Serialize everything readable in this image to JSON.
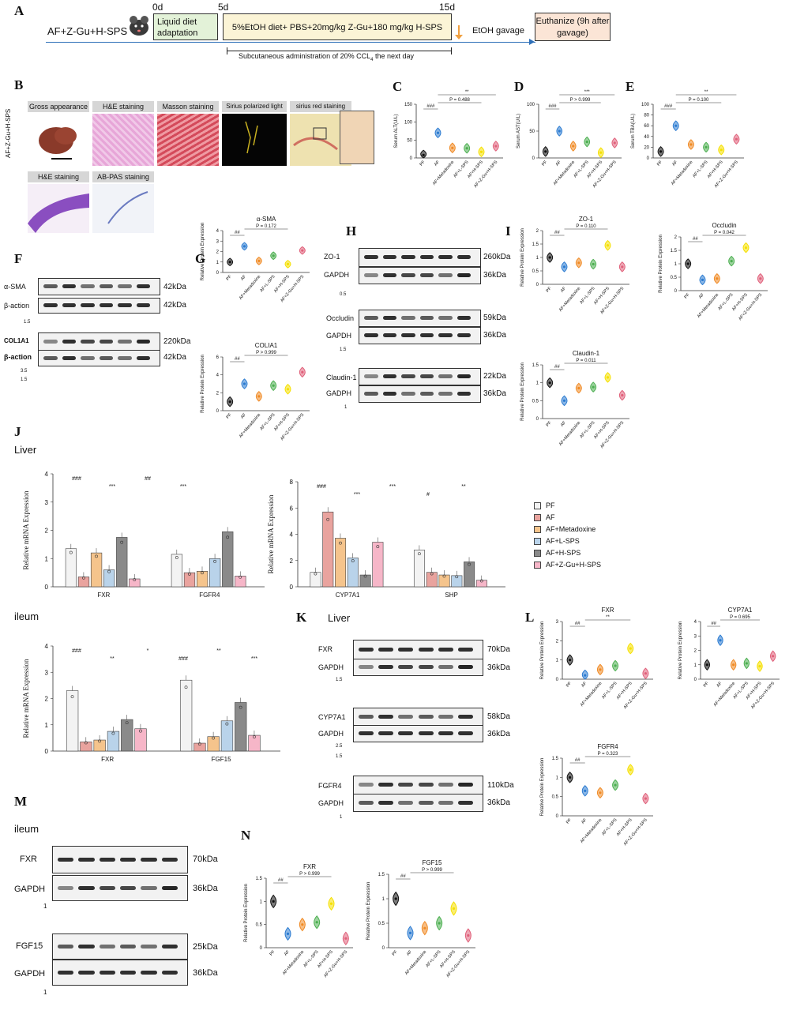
{
  "panels": {
    "A": "A",
    "B": "B",
    "C": "C",
    "D": "D",
    "E": "E",
    "F": "F",
    "G": "G",
    "H": "H",
    "I": "I",
    "J": "J",
    "K": "K",
    "L": "L",
    "M": "M",
    "N": "N"
  },
  "timeline": {
    "group": "AF+Z-Gu+H-SPS",
    "day0": "0d",
    "day5": "5d",
    "day15": "15d",
    "box1": "Liquid diet adaptation",
    "box2": "5%EtOH diet+ PBS+20mg/kg Z-Gu+180 mg/kg H-SPS",
    "subq": "Subcutaneous administration of 20% CCL",
    "subq_sub": "4",
    "subq_tail": " the next day",
    "gavage": "EtOH gavage",
    "euth": "Euthanize (9h after gavage)"
  },
  "histology": {
    "side_label": "AF+Z-Gu+H-SPS",
    "headers": [
      "Gross appearance",
      "H&E staining",
      "Masson staining",
      "Sirius polarized light",
      "sirius red staining",
      "H&E staining",
      "AB-PAS staining"
    ]
  },
  "groups6": [
    "PF",
    "AF",
    "AF+Metadoxine",
    "AF+L-SPS",
    "AF+H-SPS",
    "AF+Z-Gu+H-SPS"
  ],
  "legend": [
    "PF",
    "AF",
    "AF+Metadoxine",
    "AF+L-SPS",
    "AF+H-SPS",
    "AF+Z-Gu+H-SPS"
  ],
  "colors": {
    "PF": "#111111",
    "AF": "#2b7bd1",
    "AF+Metadoxine": "#f08a24",
    "AF+L-SPS": "#4caf50",
    "AF+H-SPS": "#f5e000",
    "AF+Z-Gu+H-SPS": "#e0607a"
  },
  "bar_colors": [
    "#f3f3f3",
    "#e9a39e",
    "#f5c48c",
    "#b9d3ea",
    "#8a8a8a",
    "#f6b6c8"
  ],
  "sections": {
    "liver": "Liver",
    "ileum": "ileum",
    "liver_k": "Liver",
    "ileum_m": "ileum"
  },
  "blots": {
    "F": {
      "rows": [
        "α-SMA",
        "β-action",
        "COL1A1",
        "β-action"
      ],
      "kda": [
        "42kDa",
        "42kDa",
        "220kDa",
        "42kDa"
      ],
      "scale1": "1.5",
      "scale2": "3.5",
      "scale3": "1.5"
    },
    "H": {
      "rows": [
        "ZO-1",
        "GAPDH",
        "Occludin",
        "GAPDH",
        "Claudin-1",
        "GADPH"
      ],
      "kda": [
        "260kDa",
        "36kDa",
        "59kDa",
        "36kDa",
        "22kDa",
        "36kDa"
      ],
      "scale1": "0.5",
      "scale2": "1.5",
      "scale3": "1"
    },
    "K": {
      "rows": [
        "FXR",
        "GAPDH",
        "CYP7A1",
        "GAPDH",
        "FGFR4",
        "GAPDH"
      ],
      "kda": [
        "70kDa",
        "36kDa",
        "58kDa",
        "36kDa",
        "110kDa",
        "36kDa"
      ],
      "scale1": "1.5",
      "scale2": "2.5",
      "scale2b": "1.5",
      "scale3": "1"
    },
    "M": {
      "rows": [
        "FXR",
        "GAPDH",
        "FGF15",
        "GAPDH"
      ],
      "kda": [
        "70kDa",
        "36kDa",
        "25kDa",
        "36kDa"
      ],
      "scale1": "1",
      "scale2": "1"
    }
  },
  "chart_data": [
    {
      "id": "C",
      "type": "violin",
      "ylabel": "Serum ALT(U/L)",
      "ylim": [
        0,
        150
      ],
      "yticks": [
        0,
        50,
        100,
        150
      ],
      "groups": [
        "PF",
        "AF",
        "AF+Metadoxine",
        "AF+L-SPS",
        "AF+H-SPS",
        "AF+Z-Gu+H-SPS"
      ],
      "values": [
        8,
        70,
        28,
        27,
        17,
        33
      ],
      "annotations": [
        "###",
        "P = 0.488",
        "**"
      ]
    },
    {
      "id": "D",
      "type": "violin",
      "ylabel": "Serum AST(U/L)",
      "ylim": [
        0,
        100
      ],
      "yticks": [
        0,
        50,
        100
      ],
      "groups": [
        "PF",
        "AF",
        "AF+Metadoxine",
        "AF+L-SPS",
        "AF+H-SPS",
        "AF+Z-Gu+H-SPS"
      ],
      "values": [
        12,
        50,
        22,
        30,
        10,
        28
      ],
      "annotations": [
        "###",
        "P > 0.999",
        "***"
      ]
    },
    {
      "id": "E",
      "type": "violin",
      "ylabel": "Serum TBA(U/L)",
      "ylim": [
        0,
        100
      ],
      "yticks": [
        0,
        20,
        40,
        60,
        80,
        100
      ],
      "groups": [
        "PF",
        "AF",
        "AF+Metadoxine",
        "AF+L-SPS",
        "AF+H-SPS",
        "AF+Z-Gu+H-SPS"
      ],
      "values": [
        12,
        60,
        25,
        20,
        15,
        35
      ],
      "annotations": [
        "###",
        "P = 0.100",
        "**"
      ]
    },
    {
      "id": "G1",
      "type": "violin",
      "title": "α-SMA",
      "ylabel": "Relative Protein Expression",
      "ylim": [
        0,
        4
      ],
      "yticks": [
        0,
        1,
        2,
        3,
        4
      ],
      "values": [
        1,
        2.5,
        1.1,
        1.6,
        0.8,
        2.1
      ],
      "annotations": [
        "##",
        "P = 0.172"
      ]
    },
    {
      "id": "G2",
      "type": "violin",
      "title": "COLIA1",
      "ylabel": "Relative Protein Expression",
      "ylim": [
        0,
        6
      ],
      "yticks": [
        0,
        2,
        4,
        6
      ],
      "values": [
        1,
        3,
        1.6,
        2.8,
        2.4,
        4.3
      ],
      "annotations": [
        "##",
        "P > 0.999"
      ]
    },
    {
      "id": "I1",
      "type": "violin",
      "title": "ZO-1",
      "ylabel": "Relative Protein Expression",
      "ylim": [
        0,
        2
      ],
      "yticks": [
        0,
        0.5,
        1,
        1.5,
        2
      ],
      "values": [
        1,
        0.65,
        0.8,
        0.75,
        1.45,
        0.65
      ],
      "annotations": [
        "##",
        "P = 0.110"
      ]
    },
    {
      "id": "I2",
      "type": "violin",
      "title": "Occludin",
      "ylabel": "Relative Protein Expression",
      "ylim": [
        0,
        2
      ],
      "yticks": [
        0,
        0.5,
        1,
        1.5,
        2
      ],
      "values": [
        1,
        0.4,
        0.45,
        1.1,
        1.6,
        0.45
      ],
      "annotations": [
        "##",
        "P = 0.042"
      ]
    },
    {
      "id": "I3",
      "type": "violin",
      "title": "Claudin-1",
      "ylabel": "Relative Protein Expression",
      "ylim": [
        0,
        1.5
      ],
      "yticks": [
        0,
        0.5,
        1,
        1.5
      ],
      "values": [
        1,
        0.5,
        0.85,
        0.88,
        1.15,
        0.65
      ],
      "annotations": [
        "##",
        "P = 0.011"
      ]
    },
    {
      "id": "J1",
      "type": "bar",
      "ylabel": "Relative mRNA Expression",
      "ylim": [
        0,
        4
      ],
      "yticks": [
        0,
        1,
        2,
        3,
        4
      ],
      "categories": [
        "FXR",
        "FGFR4"
      ],
      "series": [
        {
          "name": "PF",
          "values": [
            1.35,
            1.15
          ]
        },
        {
          "name": "AF",
          "values": [
            0.35,
            0.5
          ]
        },
        {
          "name": "AF+Metadoxine",
          "values": [
            1.2,
            0.55
          ]
        },
        {
          "name": "AF+L-SPS",
          "values": [
            0.6,
            1.0
          ]
        },
        {
          "name": "AF+H-SPS",
          "values": [
            1.75,
            1.95
          ]
        },
        {
          "name": "AF+Z-Gu+H-SPS",
          "values": [
            0.28,
            0.38
          ]
        }
      ],
      "annotations": [
        "###",
        "***",
        "##",
        "***"
      ]
    },
    {
      "id": "J2",
      "type": "bar",
      "ylabel": "Relative mRNA Expression",
      "ylim": [
        0,
        8
      ],
      "yticks": [
        0,
        2,
        4,
        6,
        8
      ],
      "categories": [
        "CYP7A1",
        "SHP"
      ],
      "series": [
        {
          "name": "PF",
          "values": [
            1.1,
            2.8
          ]
        },
        {
          "name": "AF",
          "values": [
            5.7,
            1.1
          ]
        },
        {
          "name": "AF+Metadoxine",
          "values": [
            3.7,
            0.9
          ]
        },
        {
          "name": "AF+L-SPS",
          "values": [
            2.2,
            0.85
          ]
        },
        {
          "name": "AF+H-SPS",
          "values": [
            0.9,
            1.9
          ]
        },
        {
          "name": "AF+Z-Gu+H-SPS",
          "values": [
            3.4,
            0.5
          ]
        }
      ],
      "annotations": [
        "###",
        "***",
        "***",
        "#",
        "**"
      ]
    },
    {
      "id": "J3",
      "type": "bar",
      "ylabel": "Relative mRNA Expression",
      "ylim": [
        0,
        4
      ],
      "yticks": [
        0,
        1,
        2,
        3,
        4
      ],
      "categories": [
        "FXR",
        "FGF15"
      ],
      "series": [
        {
          "name": "PF",
          "values": [
            2.3,
            2.7
          ]
        },
        {
          "name": "AF",
          "values": [
            0.35,
            0.3
          ]
        },
        {
          "name": "AF+Metadoxine",
          "values": [
            0.42,
            0.55
          ]
        },
        {
          "name": "AF+L-SPS",
          "values": [
            0.75,
            1.15
          ]
        },
        {
          "name": "AF+H-SPS",
          "values": [
            1.2,
            1.85
          ]
        },
        {
          "name": "AF+Z-Gu+H-SPS",
          "values": [
            0.85,
            0.6
          ]
        }
      ],
      "annotations": [
        "###",
        "**",
        "*",
        "###",
        "**",
        "***"
      ]
    },
    {
      "id": "L1",
      "type": "violin",
      "title": "FXR",
      "ylabel": "Relative Protein Expression",
      "ylim": [
        0,
        3
      ],
      "yticks": [
        0,
        1,
        2,
        3
      ],
      "values": [
        1,
        0.2,
        0.5,
        0.7,
        1.6,
        0.3
      ],
      "annotations": [
        "##",
        "**"
      ]
    },
    {
      "id": "L2",
      "type": "violin",
      "title": "CYP7A1",
      "ylabel": "Relative Protein Expression",
      "ylim": [
        0,
        4
      ],
      "yticks": [
        0,
        1,
        2,
        3,
        4
      ],
      "values": [
        1,
        2.7,
        1.0,
        1.1,
        0.9,
        1.6
      ],
      "annotations": [
        "##",
        "P = 0.695"
      ]
    },
    {
      "id": "L3",
      "type": "violin",
      "title": "FGFR4",
      "ylabel": "Relative Protein Expression",
      "ylim": [
        0,
        1.5
      ],
      "yticks": [
        0,
        0.5,
        1,
        1.5
      ],
      "values": [
        1,
        0.65,
        0.6,
        0.8,
        1.2,
        0.45
      ],
      "annotations": [
        "##",
        "P = 0.323"
      ]
    },
    {
      "id": "N1",
      "type": "violin",
      "title": "FXR",
      "ylabel": "Relative Protein Expression",
      "ylim": [
        0,
        1.5
      ],
      "yticks": [
        0,
        0.5,
        1,
        1.5
      ],
      "values": [
        1,
        0.3,
        0.5,
        0.55,
        0.95,
        0.2
      ],
      "annotations": [
        "##",
        "P > 0.999"
      ]
    },
    {
      "id": "N2",
      "type": "violin",
      "title": "FGF15",
      "ylabel": "Relative Protein Expression",
      "ylim": [
        0,
        1.5
      ],
      "yticks": [
        0,
        0.5,
        1,
        1.5
      ],
      "values": [
        1,
        0.3,
        0.4,
        0.5,
        0.8,
        0.25
      ],
      "annotations": [
        "##",
        "P > 0.999"
      ]
    }
  ]
}
